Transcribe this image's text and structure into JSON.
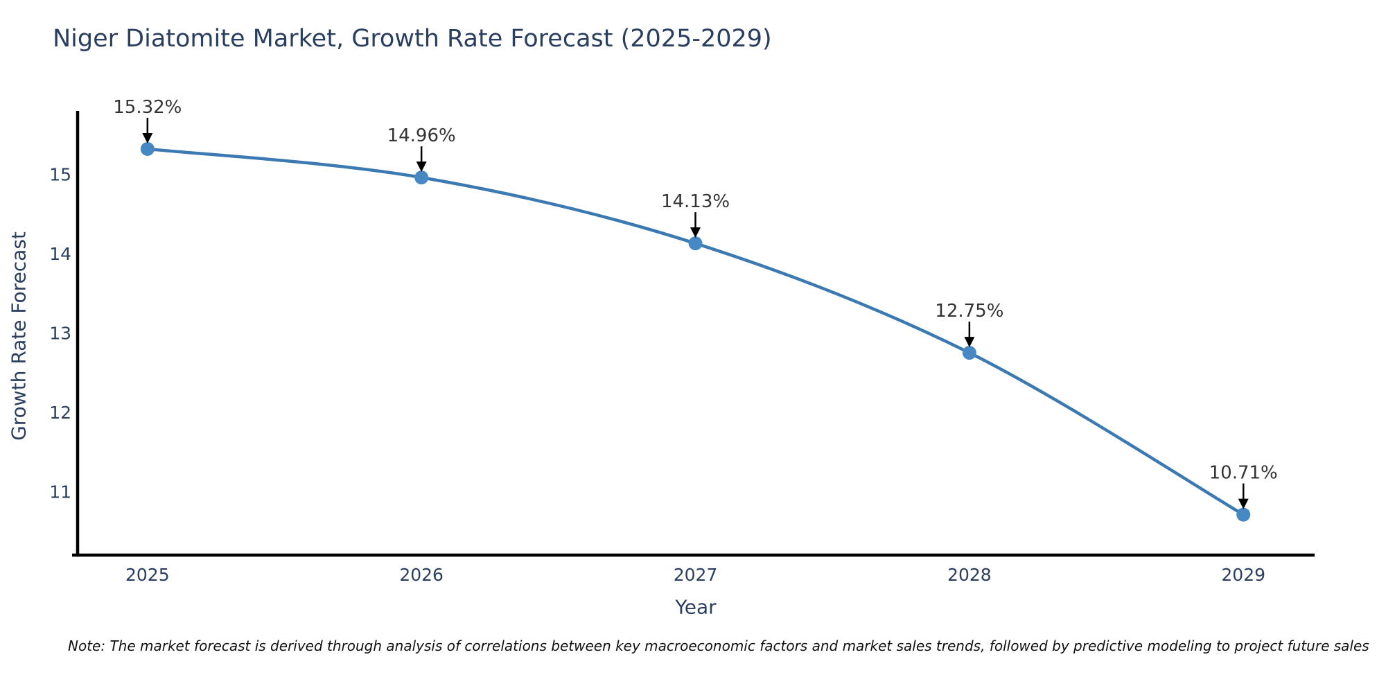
{
  "page": {
    "background": "#ffffff"
  },
  "chart": {
    "title": "Niger Diatomite Market, Growth Rate Forecast (2025-2029)",
    "xlabel": "Year",
    "ylabel": "Growth Rate Forecast",
    "note": "Note: The market forecast is derived through analysis of correlations between key macroeconomic factors and market sales trends, followed by predictive modeling to project future sales"
  },
  "chart_data": {
    "type": "line",
    "title": "Niger Diatomite Market, Growth Rate Forecast (2025-2029)",
    "xlabel": "Year",
    "ylabel": "Growth Rate Forecast",
    "x": [
      2025,
      2026,
      2027,
      2028,
      2029
    ],
    "y": [
      15.32,
      14.96,
      14.13,
      12.75,
      10.71
    ],
    "point_labels": [
      "15.32%",
      "14.96%",
      "14.13%",
      "12.75%",
      "10.71%"
    ],
    "xticks": [
      "2025",
      "2026",
      "2027",
      "2028",
      "2029"
    ],
    "yticks": [
      11,
      12,
      13,
      14,
      15
    ],
    "xlim": [
      2024.745,
      2029.26
    ],
    "ylim": [
      10.2,
      15.8
    ],
    "grid": false,
    "legend": false,
    "line_shape": "spline",
    "line_color": "#3b79b3",
    "marker_color": "#4688c4",
    "axis_color": "#000000",
    "arrow_color": "#000000",
    "tick_color": "#2a3f5f",
    "annotation_color": "#333333"
  }
}
